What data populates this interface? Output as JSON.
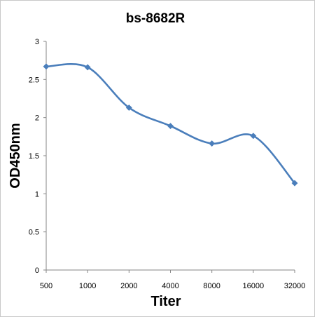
{
  "chart_data": {
    "type": "line",
    "title": "bs-8682R",
    "xlabel": "Titer",
    "ylabel": "OD450nm",
    "categories": [
      "500",
      "1000",
      "2000",
      "4000",
      "8000",
      "16000",
      "32000"
    ],
    "series": [
      {
        "values": [
          2.67,
          2.66,
          2.13,
          1.89,
          1.66,
          1.76,
          1.14
        ]
      }
    ],
    "ylim": [
      0,
      3
    ],
    "yticks": [
      "0",
      "0.5",
      "1",
      "1.5",
      "2",
      "2.5",
      "3"
    ],
    "grid": false,
    "legend": "none",
    "colors": {
      "line": "#4a7ebb",
      "axis": "#868686"
    }
  }
}
